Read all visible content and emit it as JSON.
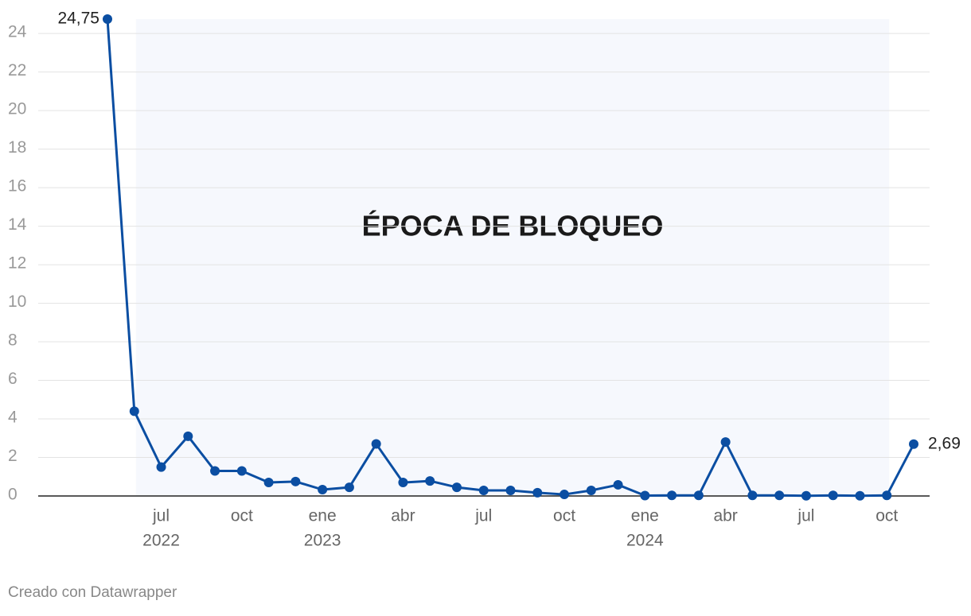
{
  "chart_data": {
    "type": "line",
    "annotation": "ÉPOCA DE BLOQUEO",
    "footer": "Creado con Datawrapper",
    "categories": [
      null,
      null,
      "jul",
      null,
      null,
      "oct",
      null,
      null,
      "ene",
      null,
      null,
      "abr",
      null,
      null,
      "jul",
      null,
      null,
      "oct",
      null,
      null,
      "ene",
      null,
      null,
      "abr",
      null,
      null,
      "jul",
      null,
      null,
      "oct",
      null
    ],
    "year_labels": [
      null,
      null,
      "2022",
      null,
      null,
      null,
      null,
      null,
      "2023",
      null,
      null,
      null,
      null,
      null,
      null,
      null,
      null,
      null,
      null,
      null,
      "2024",
      null,
      null,
      null,
      null,
      null,
      null,
      null,
      null,
      null,
      null
    ],
    "series": [
      {
        "color": "#0b4ea2",
        "values": [
          24.75,
          4.4,
          1.5,
          3.1,
          1.3,
          1.3,
          0.7,
          0.75,
          0.33,
          0.45,
          2.7,
          0.7,
          0.78,
          0.45,
          0.29,
          0.29,
          0.17,
          0.08,
          0.29,
          0.58,
          0.02,
          0.03,
          0.03,
          2.8,
          0.03,
          0.03,
          0.01,
          0.03,
          0.01,
          0.03,
          2.69
        ],
        "value_labels": [
          "24,75",
          null,
          null,
          null,
          null,
          null,
          null,
          null,
          null,
          null,
          null,
          null,
          null,
          null,
          null,
          null,
          null,
          null,
          null,
          null,
          null,
          null,
          null,
          null,
          null,
          null,
          null,
          null,
          null,
          null,
          "2,69"
        ]
      }
    ],
    "highlight": {
      "from": 1,
      "to": 29,
      "color": "#f6f8fd"
    },
    "ylim": [
      0,
      24.75
    ],
    "yticks": [
      0,
      2,
      4,
      6,
      8,
      10,
      12,
      14,
      16,
      18,
      20,
      22,
      24
    ],
    "grid": true
  }
}
